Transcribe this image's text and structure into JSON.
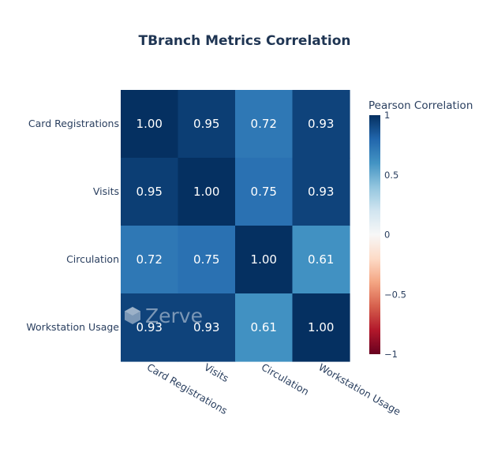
{
  "chart_data": {
    "type": "heatmap",
    "title": "TBranch Metrics Correlation",
    "x_categories": [
      "Card Registrations",
      "Visits",
      "Circulation",
      "Workstation Usage"
    ],
    "y_categories": [
      "Card Registrations",
      "Visits",
      "Circulation",
      "Workstation Usage"
    ],
    "values": [
      [
        1.0,
        0.95,
        0.72,
        0.93
      ],
      [
        0.95,
        1.0,
        0.75,
        0.93
      ],
      [
        0.72,
        0.75,
        1.0,
        0.61
      ],
      [
        0.93,
        0.93,
        0.61,
        1.0
      ]
    ],
    "value_labels": [
      [
        "1.00",
        "0.95",
        "0.72",
        "0.93"
      ],
      [
        "0.95",
        "1.00",
        "0.75",
        "0.93"
      ],
      [
        "0.72",
        "0.75",
        "1.00",
        "0.61"
      ],
      [
        "0.93",
        "0.93",
        "0.61",
        "1.00"
      ]
    ],
    "zmin": -1,
    "zmax": 1,
    "colorscale": "RdBu",
    "colorbar": {
      "title": "Pearson Correlation",
      "ticks": [
        1,
        0.5,
        0,
        -0.5,
        -1
      ],
      "tick_labels": [
        "1",
        "0.5",
        "0",
        "−0.5",
        "−1"
      ]
    }
  },
  "watermark": {
    "text": "Zerve"
  },
  "colors": {
    "title": "#1f3553",
    "axis_text": "#2a3f5f",
    "cell_text": "#ffffff"
  }
}
